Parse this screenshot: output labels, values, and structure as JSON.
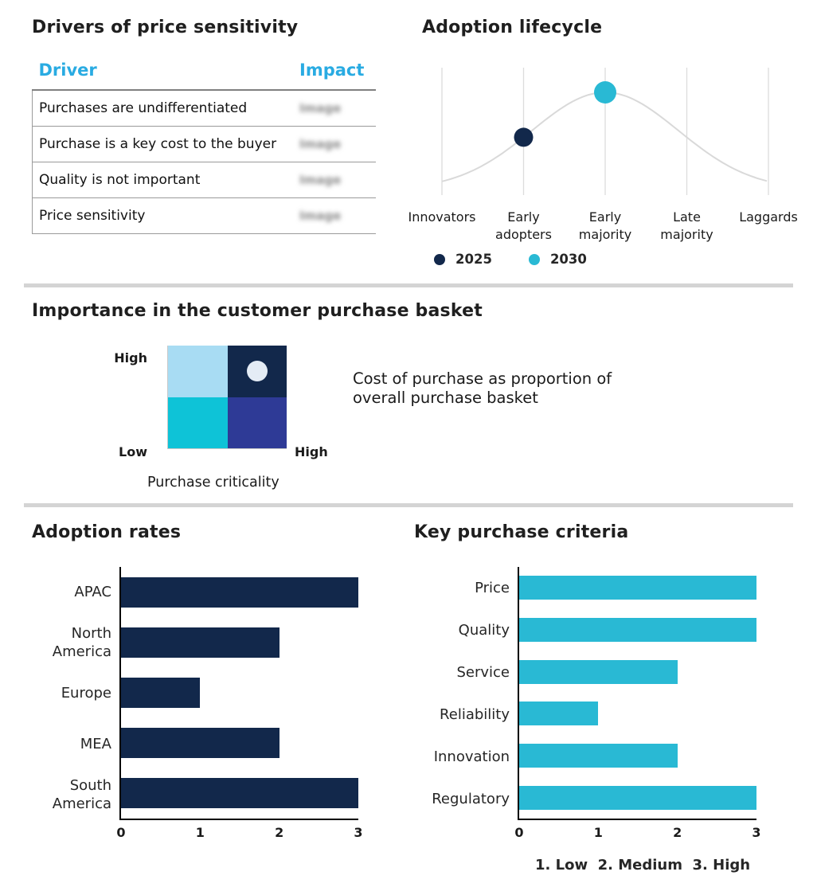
{
  "palette": {
    "navy": "#12284b",
    "cyan": "#29b9d4",
    "light_blue": "#a8dcf3",
    "indigo": "#2e3a96",
    "header_blue": "#29abe2",
    "curve_gray": "#d9d9d9"
  },
  "chart_data": [
    {
      "type": "table",
      "title": "Drivers of price sensitivity",
      "columns": [
        "Driver",
        "Impact"
      ],
      "rows": [
        {
          "driver": "Purchases are undifferentiated",
          "impact": "Image",
          "impact_blurred": true
        },
        {
          "driver": "Purchase is a key cost to the buyer",
          "impact": "Image",
          "impact_blurred": true
        },
        {
          "driver": "Quality is not important",
          "impact": "Image",
          "impact_blurred": true
        },
        {
          "driver": "Price sensitivity",
          "impact": "Image",
          "impact_blurred": true
        }
      ]
    },
    {
      "type": "line",
      "subtype": "bell-curve",
      "title": "Adoption lifecycle",
      "categories": [
        "Innovators",
        "Early adopters",
        "Early majority",
        "Late majority",
        "Laggards"
      ],
      "grid": true,
      "curve_color": "#d9d9d9",
      "legend_position": "bottom-left",
      "series": [
        {
          "name": "2025",
          "category": "Early adopters",
          "color": "#12284b",
          "marker_radius": 12
        },
        {
          "name": "2030",
          "category": "Early majority",
          "color": "#29b9d4",
          "marker_radius": 14
        }
      ]
    },
    {
      "type": "heatmap",
      "title": "Importance in the customer purchase basket",
      "x_axis_label": "Purchase criticality",
      "x_max_label": "High",
      "y_max_label": "High",
      "y_min_label": "Low",
      "annotation": "Cost of purchase as proportion of overall purchase basket",
      "quadrants": [
        {
          "position": "top-left",
          "color": "#a8dcf3"
        },
        {
          "position": "top-right",
          "color": "#12284b",
          "marker": {
            "shape": "circle",
            "color": "#e4ecf5"
          }
        },
        {
          "position": "bottom-left",
          "color": "#0ec3d7"
        },
        {
          "position": "bottom-right",
          "color": "#2e3a96"
        }
      ]
    },
    {
      "type": "bar",
      "title": "Adoption rates",
      "orientation": "horizontal",
      "categories": [
        "APAC",
        "North America",
        "Europe",
        "MEA",
        "South America"
      ],
      "values": [
        3,
        2,
        1,
        2,
        3
      ],
      "xlim": [
        0,
        3
      ],
      "x_ticks": [
        0,
        1,
        2,
        3
      ],
      "bar_color": "#12284b"
    },
    {
      "type": "bar",
      "title": "Key purchase criteria",
      "orientation": "horizontal",
      "categories": [
        "Price",
        "Quality",
        "Service",
        "Reliability",
        "Innovation",
        "Regulatory"
      ],
      "values": [
        3,
        3,
        2,
        1,
        2,
        3
      ],
      "xlim": [
        0,
        3
      ],
      "x_ticks": [
        0,
        1,
        2,
        3
      ],
      "bar_color": "#29b9d4",
      "footnote": "1. Low  2. Medium  3. High"
    }
  ]
}
